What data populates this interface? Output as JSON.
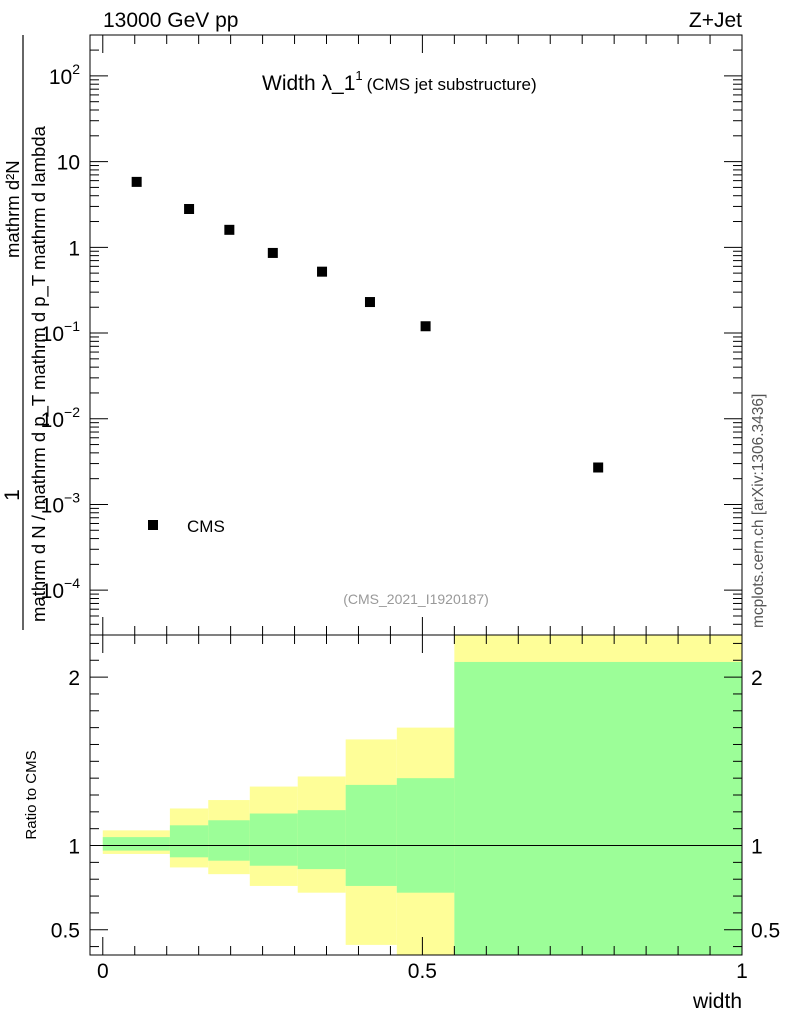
{
  "header": {
    "energy_label": "13000 GeV pp",
    "process_label": "Z+Jet"
  },
  "side_label": "mcplots.cern.ch [arXiv:1306.3436]",
  "chart_data": [
    {
      "type": "scatter",
      "panel": "main",
      "title_main": "Width λ_1",
      "title_sup": "1",
      "title_sub": "(CMS jet substructure)",
      "analysis_label": "(CMS_2021_I1920187)",
      "ylabel_lines": [
        "1",
        "mathrm d N / mathrm d p_T mathrm d p_T mathrm d lambda",
        "mathrm d²N"
      ],
      "yscale": "log",
      "ylim": [
        3e-05,
        300
      ],
      "xlim": [
        -0.02,
        1.0
      ],
      "y_ticks": [
        {
          "value": 100,
          "base": "10",
          "exp": "2"
        },
        {
          "value": 10,
          "base": "10",
          "exp": ""
        },
        {
          "value": 1,
          "base": "1",
          "exp": ""
        },
        {
          "value": 0.1,
          "base": "10",
          "exp": "−1"
        },
        {
          "value": 0.01,
          "base": "10",
          "exp": "−2"
        },
        {
          "value": 0.001,
          "base": "10",
          "exp": "−3"
        },
        {
          "value": 0.0001,
          "base": "10",
          "exp": "−4"
        }
      ],
      "series": [
        {
          "name": "CMS",
          "marker": "square",
          "color": "#000000",
          "x": [
            0.053,
            0.135,
            0.198,
            0.266,
            0.343,
            0.418,
            0.505,
            0.775
          ],
          "y": [
            5.8,
            2.8,
            1.6,
            0.86,
            0.52,
            0.23,
            0.12,
            0.0027
          ]
        }
      ],
      "legend": {
        "label": "CMS",
        "placement": "bottom-left"
      }
    },
    {
      "type": "area",
      "panel": "ratio",
      "ylabel": "Ratio to CMS",
      "xlabel": "width",
      "xlim": [
        -0.02,
        1.0
      ],
      "ylim": [
        0.35,
        2.25
      ],
      "x_ticks": [
        {
          "value": 0,
          "label": "0"
        },
        {
          "value": 0.5,
          "label": "0.5"
        },
        {
          "value": 1,
          "label": "1"
        }
      ],
      "y_ticks": [
        {
          "value": 2,
          "label": "2"
        },
        {
          "value": 1,
          "label": "1"
        },
        {
          "value": 0.5,
          "label": "0.5"
        }
      ],
      "reference_line": 1,
      "bins": [
        {
          "x0": 0.0,
          "x1": 0.105,
          "inner": [
            0.97,
            1.05
          ],
          "outer": [
            0.95,
            1.09
          ]
        },
        {
          "x0": 0.105,
          "x1": 0.165,
          "inner": [
            0.93,
            1.12
          ],
          "outer": [
            0.87,
            1.22
          ]
        },
        {
          "x0": 0.165,
          "x1": 0.23,
          "inner": [
            0.91,
            1.15
          ],
          "outer": [
            0.83,
            1.27
          ]
        },
        {
          "x0": 0.23,
          "x1": 0.305,
          "inner": [
            0.88,
            1.19
          ],
          "outer": [
            0.76,
            1.35
          ]
        },
        {
          "x0": 0.305,
          "x1": 0.38,
          "inner": [
            0.86,
            1.21
          ],
          "outer": [
            0.72,
            1.41
          ]
        },
        {
          "x0": 0.38,
          "x1": 0.46,
          "inner": [
            0.76,
            1.36
          ],
          "outer": [
            0.41,
            1.63
          ]
        },
        {
          "x0": 0.46,
          "x1": 0.55,
          "inner": [
            0.72,
            1.4
          ],
          "outer": [
            0.35,
            1.7
          ]
        },
        {
          "x0": 0.55,
          "x1": 1.0,
          "inner": [
            0.35,
            2.09
          ],
          "outer": [
            0.35,
            2.25
          ]
        }
      ],
      "colors": {
        "inner_band": "#9cfe98",
        "outer_band": "#fefe98"
      }
    }
  ]
}
